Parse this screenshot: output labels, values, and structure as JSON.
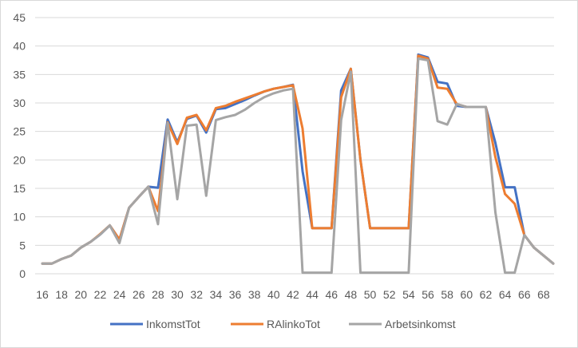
{
  "chart_data": {
    "type": "line",
    "title": "",
    "xlabel": "",
    "ylabel": "",
    "x": [
      16,
      17,
      18,
      19,
      20,
      21,
      22,
      23,
      24,
      25,
      26,
      27,
      28,
      29,
      30,
      31,
      32,
      33,
      34,
      35,
      36,
      37,
      38,
      39,
      40,
      41,
      42,
      43,
      44,
      45,
      46,
      47,
      48,
      49,
      50,
      51,
      52,
      53,
      54,
      55,
      56,
      57,
      58,
      59,
      60,
      61,
      62,
      63,
      64,
      65,
      66,
      67,
      68,
      69
    ],
    "x_tick_labels": [
      "16",
      "18",
      "20",
      "22",
      "24",
      "26",
      "28",
      "30",
      "32",
      "34",
      "36",
      "38",
      "40",
      "42",
      "44",
      "46",
      "48",
      "50",
      "52",
      "54",
      "56",
      "58",
      "60",
      "62",
      "64",
      "66",
      "68"
    ],
    "ylim": [
      0,
      45
    ],
    "y_ticks": [
      0,
      5,
      10,
      15,
      20,
      25,
      30,
      35,
      40,
      45
    ],
    "grid": true,
    "legend_position": "bottom",
    "series": [
      {
        "name": "InkomstTot",
        "color": "#4472c4",
        "values": [
          1.8,
          1.8,
          2.6,
          3.2,
          4.6,
          5.6,
          6.9,
          8.5,
          6.0,
          11.6,
          13.5,
          15.3,
          15.1,
          27.1,
          23.1,
          27.2,
          27.8,
          24.8,
          28.9,
          29.1,
          29.8,
          30.5,
          31.3,
          32.0,
          32.5,
          32.8,
          33.2,
          18.0,
          8.0,
          8.0,
          8.0,
          32.2,
          36.0,
          20.0,
          8.0,
          8.0,
          8.0,
          8.0,
          8.0,
          38.5,
          38.0,
          33.7,
          33.4,
          29.5,
          29.3,
          29.3,
          29.3,
          23.0,
          15.2,
          15.2,
          6.8,
          4.6,
          3.2,
          1.8
        ]
      },
      {
        "name": "RAlinkoTot",
        "color": "#ed7d31",
        "values": [
          1.8,
          1.8,
          2.6,
          3.2,
          4.6,
          5.6,
          7.0,
          8.5,
          6.0,
          11.6,
          13.5,
          15.3,
          11.0,
          26.6,
          22.8,
          27.4,
          27.9,
          25.2,
          29.1,
          29.5,
          30.2,
          30.8,
          31.4,
          32.0,
          32.5,
          32.8,
          33.1,
          25.5,
          8.0,
          8.0,
          8.0,
          31.0,
          36.0,
          20.0,
          8.0,
          8.0,
          8.0,
          8.0,
          8.0,
          38.3,
          37.8,
          32.7,
          32.5,
          29.8,
          29.3,
          29.3,
          29.3,
          20.5,
          14.0,
          12.3,
          6.8,
          4.6,
          3.2,
          1.8
        ]
      },
      {
        "name": "Arbetsinkomst",
        "color": "#a5a5a5",
        "values": [
          1.8,
          1.8,
          2.6,
          3.2,
          4.6,
          5.6,
          6.9,
          8.5,
          5.4,
          11.6,
          13.5,
          15.3,
          8.7,
          26.5,
          13.1,
          26.0,
          26.2,
          13.7,
          27.0,
          27.5,
          27.9,
          28.8,
          30.0,
          31.0,
          31.7,
          32.2,
          32.5,
          0.2,
          0.2,
          0.2,
          0.2,
          27.0,
          35.5,
          0.2,
          0.2,
          0.2,
          0.2,
          0.2,
          0.2,
          37.8,
          37.5,
          26.8,
          26.2,
          29.8,
          29.3,
          29.3,
          29.3,
          10.8,
          0.2,
          0.2,
          6.8,
          4.6,
          3.2,
          1.8
        ]
      }
    ]
  }
}
